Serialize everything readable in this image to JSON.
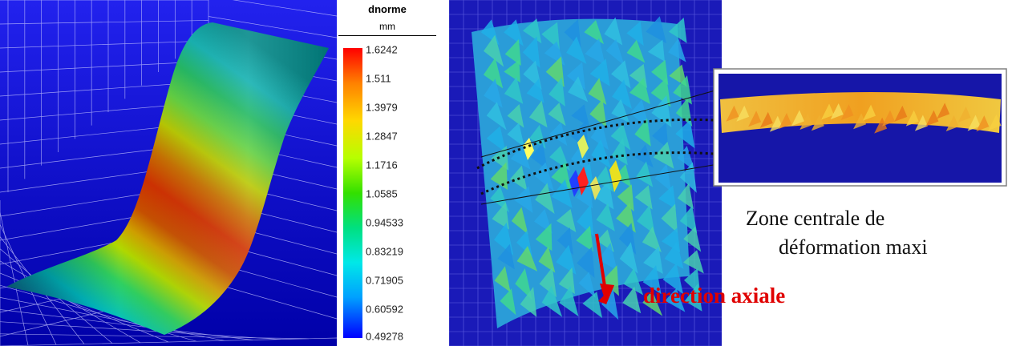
{
  "legend": {
    "title": "dnorme",
    "unit": "mm",
    "ticks": [
      "1.6242",
      "1.511",
      "1.3979",
      "1.2847",
      "1.1716",
      "1.0585",
      "0.94533",
      "0.83219",
      "0.71905",
      "0.60592",
      "0.49278"
    ]
  },
  "annotations": {
    "zone_line1": "Zone centrale de",
    "zone_line2": "déformation maxi",
    "axial_direction": "direction axiale"
  },
  "colors": {
    "background_blue": "#1a1acd",
    "grid": "#c8c8ff",
    "arrow": "#e00000"
  }
}
